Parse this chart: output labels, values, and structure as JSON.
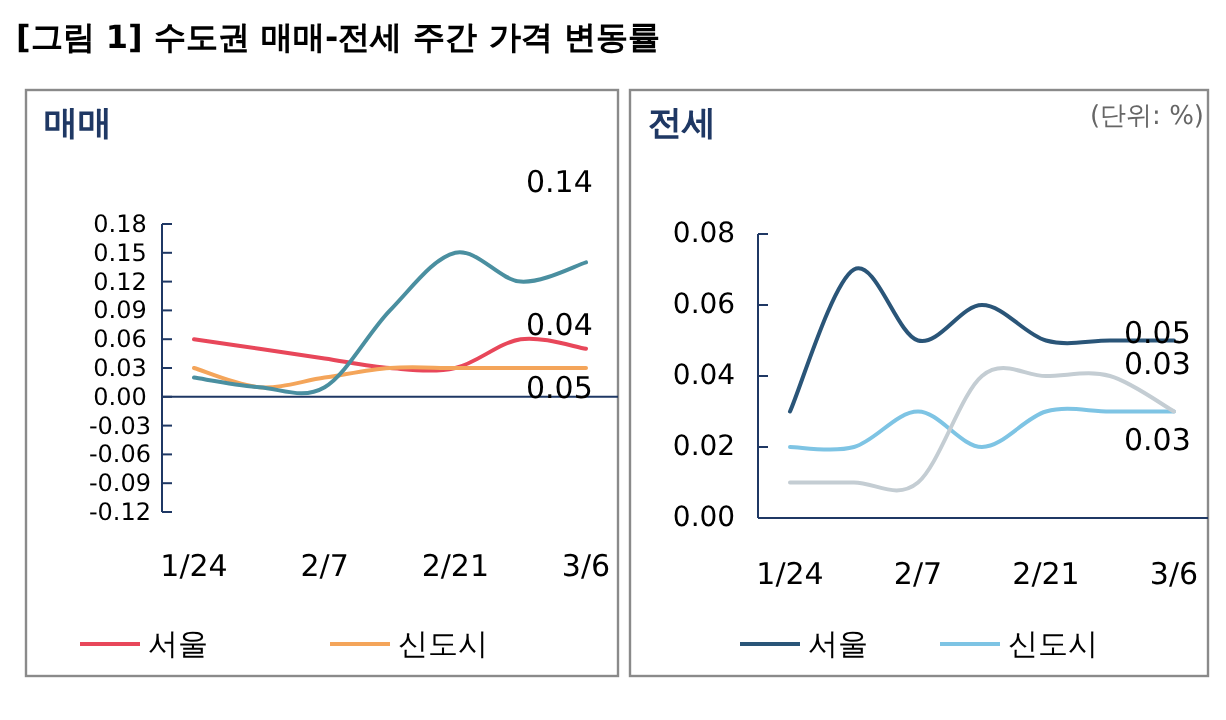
{
  "chart_data": [
    {
      "type": "line",
      "title": "매매",
      "annotations": [
        "[그림 1] 수도권 매매-전세 주간 가격 변동률",
        "0.04",
        "0.05",
        "0.14"
      ],
      "categories": [
        "1/24",
        null,
        "2/7",
        null,
        "2/21",
        null,
        "3/6"
      ],
      "series": [
        {
          "name": "서울",
          "color": "#e8475a",
          "values": [
            0.06,
            0.05,
            0.04,
            0.03,
            0.03,
            0.06,
            0.05
          ]
        },
        {
          "name": "신도시",
          "color": "#f4a55a",
          "values": [
            0.03,
            0.01,
            0.02,
            0.03,
            0.03,
            0.03,
            0.03
          ]
        },
        {
          "color": "#4a8fa0",
          "values": [
            0.02,
            0.01,
            0.01,
            0.09,
            0.15,
            0.12,
            0.14
          ]
        }
      ],
      "ylim": [
        -0.12,
        0.18
      ],
      "yticks": [
        {
          "value": -0.12,
          "label": "-0.12"
        },
        {
          "value": -0.09,
          "label": "-0.09"
        },
        {
          "value": -0.06,
          "label": "-0.06"
        },
        {
          "value": -0.03,
          "label": "-0.03"
        },
        {
          "value": 0,
          "label": "0.00"
        },
        {
          "value": 0.03,
          "label": "0.03"
        },
        {
          "value": 0.06,
          "label": "0.06"
        },
        {
          "value": 0.09,
          "label": "0.09"
        },
        {
          "value": 0.12,
          "label": "0.12"
        },
        {
          "value": 0.15,
          "label": "0.15"
        },
        {
          "value": 0.18,
          "label": "0.18"
        }
      ],
      "ref_lines": [
        {
          "axis": "y",
          "value": 0,
          "color": "#1f3864"
        }
      ],
      "legend": "bottom",
      "grid": false,
      "marker": "none",
      "line_style": "solid"
    },
    {
      "type": "line",
      "title": "전세",
      "annotations": [
        "(단위: %)",
        "0.05",
        "0.03",
        "0.03"
      ],
      "categories": [
        "1/24",
        null,
        "2/7",
        null,
        "2/21",
        null,
        "3/6"
      ],
      "series": [
        {
          "name": "서울",
          "color": "#2a5578",
          "values": [
            0.03,
            0.07,
            0.05,
            0.06,
            0.05,
            0.05,
            0.05
          ]
        },
        {
          "name": "신도시",
          "color": "#7ec4e4",
          "values": [
            0.02,
            0.02,
            0.03,
            0.02,
            0.03,
            0.03,
            0.03
          ]
        },
        {
          "color": "#c4cdd3",
          "values": [
            0.01,
            0.01,
            0.01,
            0.04,
            0.04,
            0.04,
            0.03
          ]
        }
      ],
      "ylim": [
        0,
        0.08
      ],
      "yticks": [
        {
          "value": 0,
          "label": "0.00"
        },
        {
          "value": 0.02,
          "label": "0.02"
        },
        {
          "value": 0.04,
          "label": "0.04"
        },
        {
          "value": 0.06,
          "label": "0.06"
        },
        {
          "value": 0.08,
          "label": "0.08"
        }
      ],
      "legend": "bottom",
      "grid": false,
      "marker": "none",
      "line_style": "solid"
    }
  ]
}
